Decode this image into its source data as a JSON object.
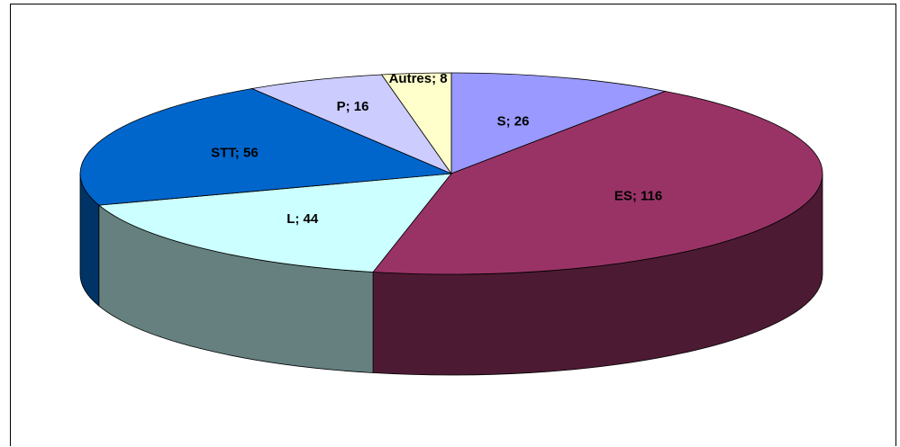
{
  "chart_data": {
    "type": "pie",
    "style": "3d",
    "title": "",
    "labels": [
      "S",
      "ES",
      "L",
      "STT",
      "P",
      "Autres"
    ],
    "values": [
      26,
      116,
      44,
      56,
      16,
      8
    ],
    "data_labels": [
      "S; 26",
      "ES; 116",
      "L; 44",
      "STT; 56",
      "P; 16",
      "Autres; 8"
    ],
    "colors": [
      "#9999ff",
      "#993366",
      "#ccffff",
      "#0066cc",
      "#ccccff",
      "#ffffcc"
    ],
    "legend": "none"
  }
}
